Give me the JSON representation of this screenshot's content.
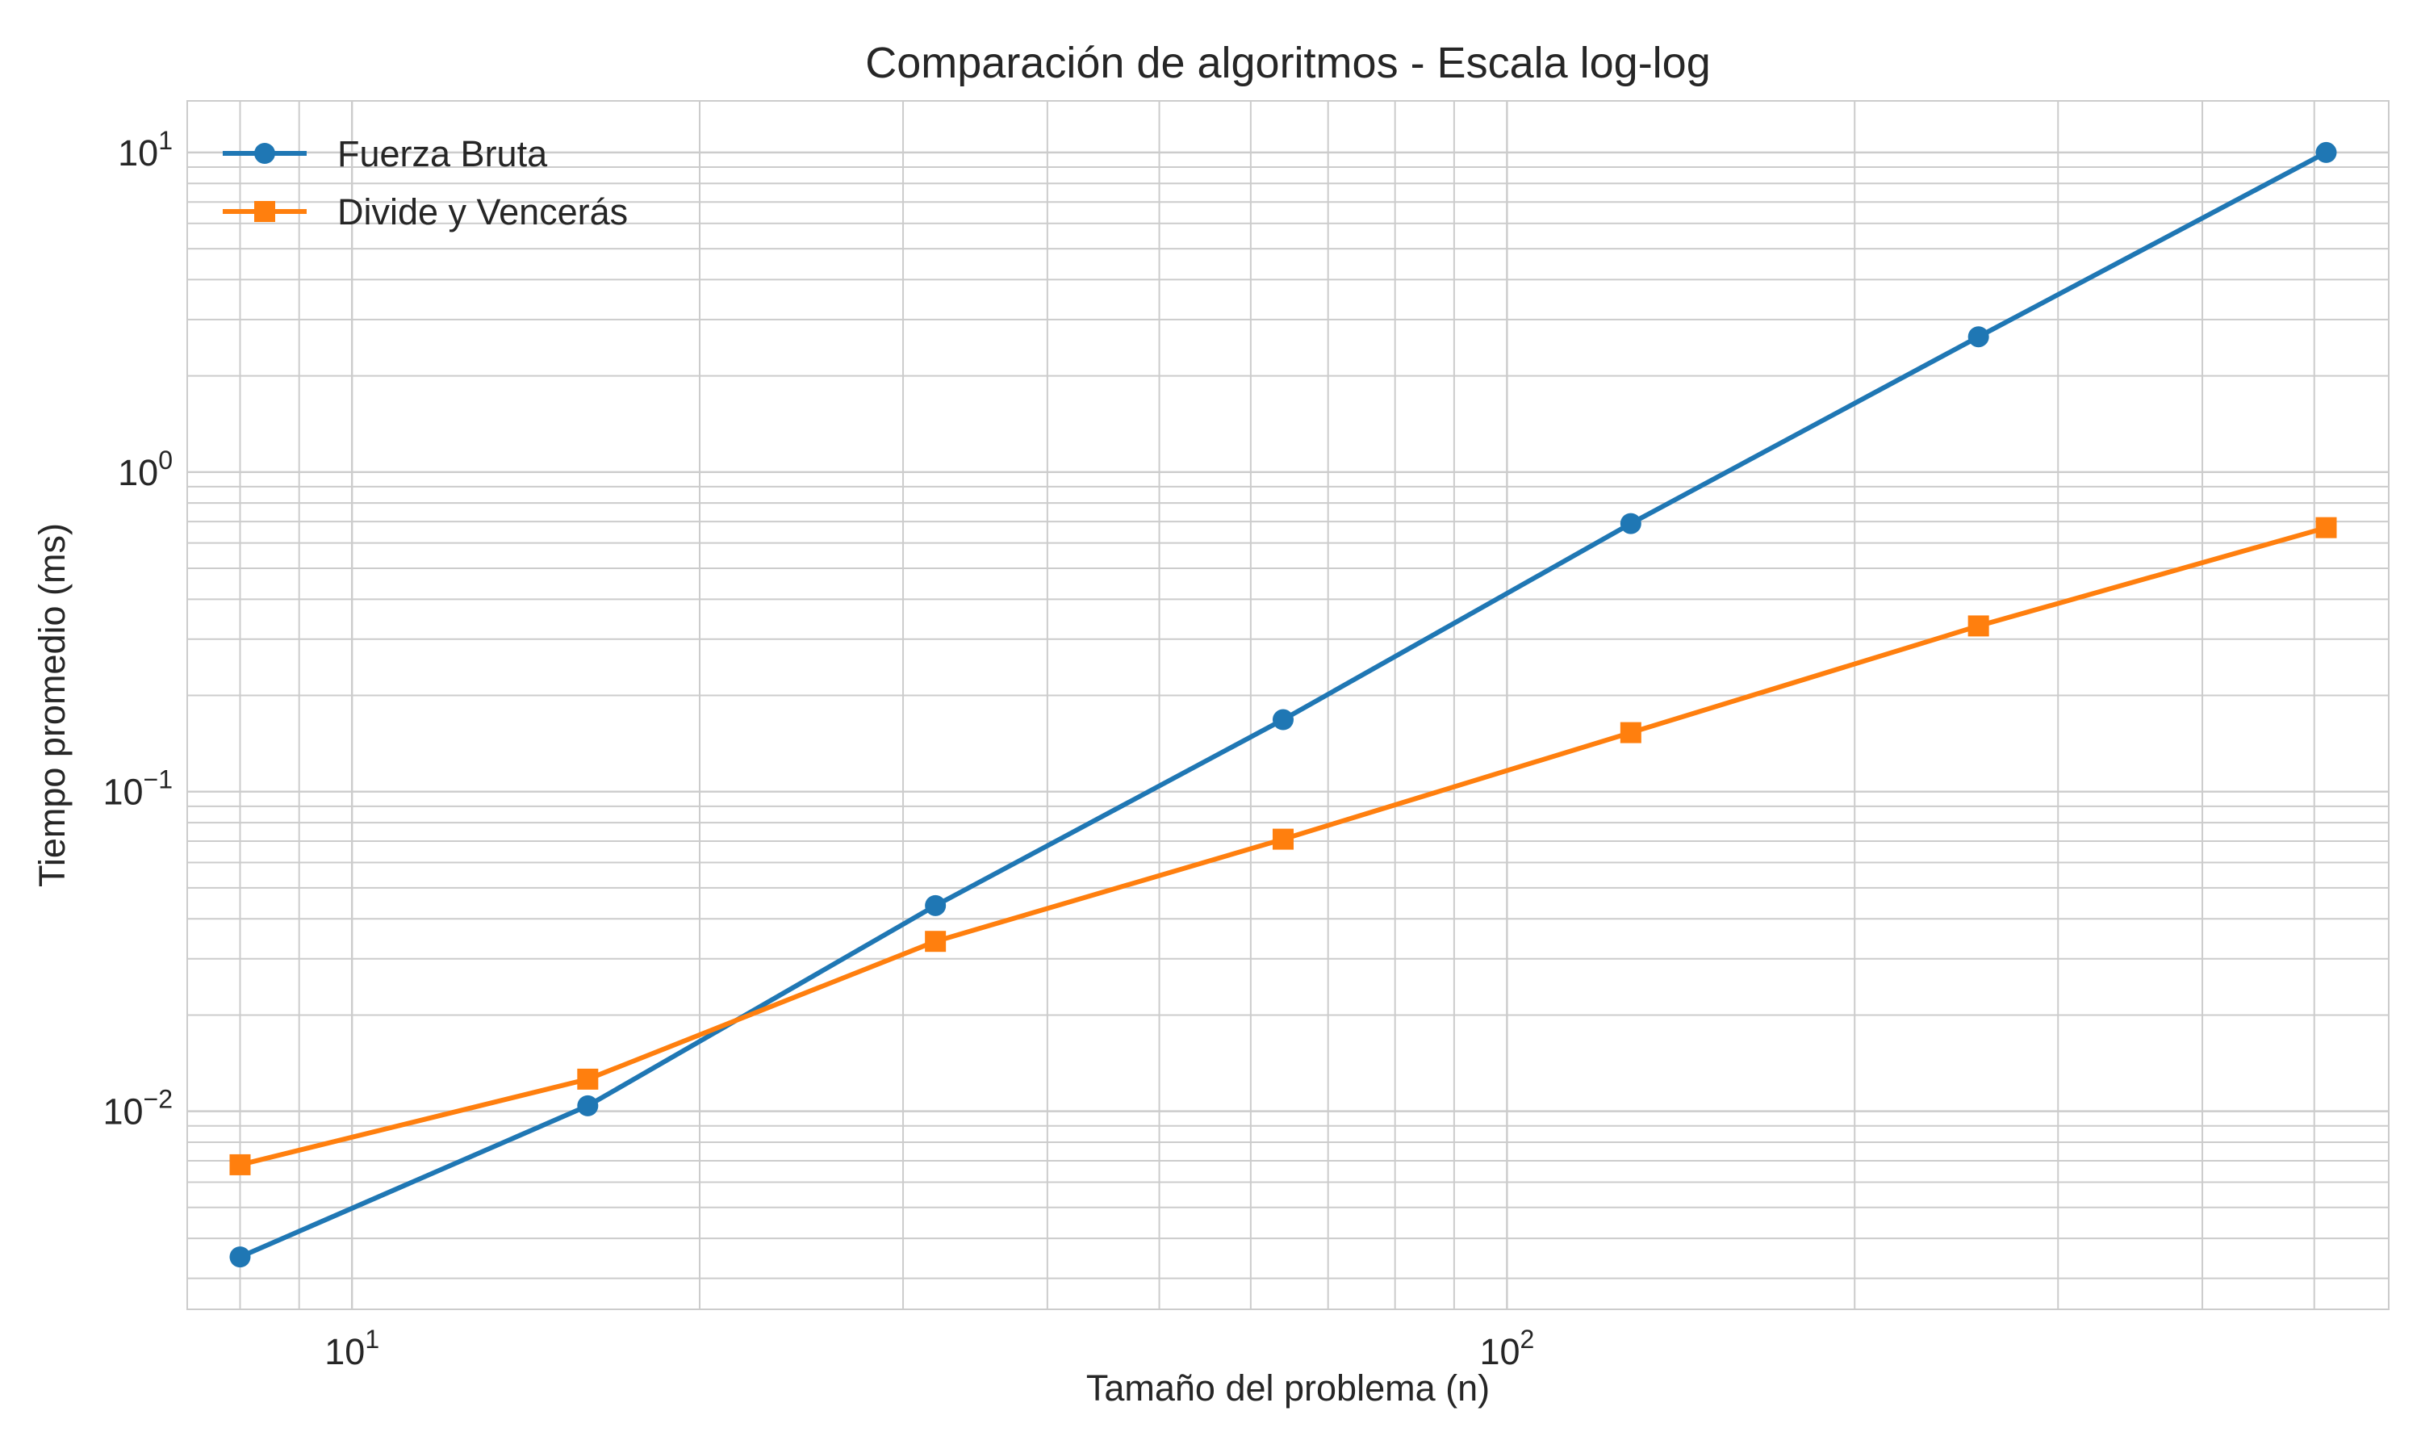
{
  "chart_data": {
    "type": "line",
    "title": "Comparación de algoritmos - Escala log-log",
    "xlabel": "Tamaño del problema (n)",
    "ylabel": "Tiempo promedio (ms)",
    "xscale": "log",
    "yscale": "log",
    "xlim": [
      7.2,
      580
    ],
    "ylim": [
      0.0024,
      14.5
    ],
    "grid": "on (major and minor)",
    "legend_position": "top-left",
    "x_ticks": [
      {
        "base": "10",
        "exp": "1",
        "value": 10
      },
      {
        "base": "10",
        "exp": "2",
        "value": 100
      }
    ],
    "y_ticks": [
      {
        "base": "10",
        "exp": "1",
        "value": 10
      },
      {
        "base": "10",
        "exp": "0",
        "value": 1
      },
      {
        "base": "10",
        "exp": "−1",
        "value": 0.1
      },
      {
        "base": "10",
        "exp": "−2",
        "value": 0.01
      }
    ],
    "series": [
      {
        "name": "Fuerza Bruta",
        "color": "#1f77b4",
        "marker": "circle",
        "x": [
          8,
          16,
          32,
          64,
          128,
          256,
          512
        ],
        "y": [
          0.0035,
          0.0104,
          0.044,
          0.168,
          0.69,
          2.65,
          10.0
        ]
      },
      {
        "name": "Divide y Vencerás",
        "color": "#ff7f0e",
        "marker": "square",
        "x": [
          8,
          16,
          32,
          64,
          128,
          256,
          512
        ],
        "y": [
          0.0068,
          0.0126,
          0.034,
          0.071,
          0.153,
          0.33,
          0.67
        ]
      }
    ]
  }
}
